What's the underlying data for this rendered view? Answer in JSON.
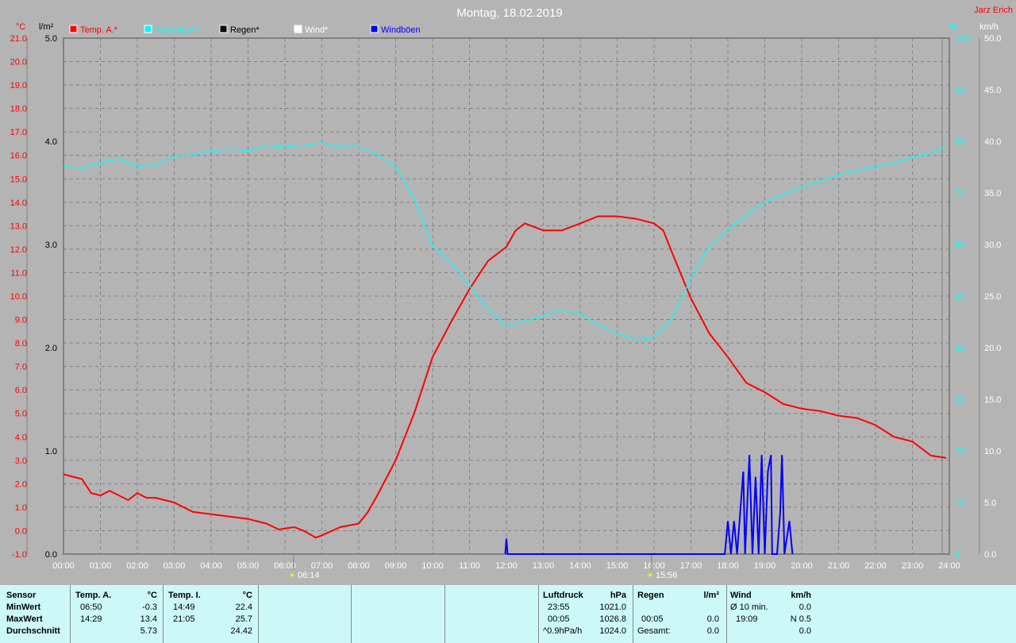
{
  "title": "Montag, 18.02.2019",
  "author": "Jarz Erich",
  "colors": {
    "temp": "#ff0000",
    "humidity": "#00ffff",
    "rain": "#000000",
    "wind": "#ffffff",
    "gust": "#0000ff",
    "background": "#b4b4b4",
    "table": "#ccf8f8"
  },
  "chart_data": {
    "type": "line",
    "title": "Montag, 18.02.2019",
    "legend_position": "top",
    "grid": true,
    "x_ticks": [
      "00:00",
      "01:00",
      "02:00",
      "03:00",
      "04:00",
      "05:00",
      "06:00",
      "07:00",
      "08:00",
      "09:00",
      "10:00",
      "11:00",
      "12:00",
      "13:00",
      "14:00",
      "15:00",
      "16:00",
      "17:00",
      "18:00",
      "19:00",
      "20:00",
      "21:00",
      "22:00",
      "23:00",
      "24:00"
    ],
    "xlim": [
      "00:00",
      "24:00"
    ],
    "axes": {
      "temp": {
        "unit": "°C",
        "ylim": [
          -1.0,
          21.0
        ],
        "ticks": [
          "21.0",
          "20.0",
          "19.0",
          "18.0",
          "17.0",
          "16.0",
          "15.0",
          "14.0",
          "13.0",
          "12.0",
          "11.0",
          "10.0",
          "9.0",
          "8.0",
          "7.0",
          "6.0",
          "5.0",
          "4.0",
          "3.0",
          "2.0",
          "1.0",
          "0.0",
          "-1.0"
        ]
      },
      "rain": {
        "unit": "l/m²",
        "ylim": [
          0,
          5
        ],
        "ticks": [
          "5.0",
          "4.0",
          "3.0",
          "2.0",
          "1.0",
          "0.0"
        ]
      },
      "humidity": {
        "unit": "%",
        "ylim": [
          0,
          100
        ],
        "ticks": [
          "100",
          "90",
          "80",
          "70",
          "60",
          "50",
          "40",
          "30",
          "20",
          "10",
          "0"
        ]
      },
      "wind": {
        "unit": "km/h",
        "ylim": [
          0,
          50
        ],
        "ticks": [
          "50.0",
          "45.0",
          "40.0",
          "35.0",
          "30.0",
          "25.0",
          "20.0",
          "15.0",
          "10.0",
          "5.0",
          "0.0"
        ]
      }
    },
    "series": [
      {
        "name": "Temp. A.*",
        "axis": "temp",
        "points": [
          [
            "00:00",
            2.4
          ],
          [
            "00:30",
            2.2
          ],
          [
            "00:45",
            1.6
          ],
          [
            "01:00",
            1.5
          ],
          [
            "01:15",
            1.7
          ],
          [
            "01:30",
            1.5
          ],
          [
            "01:45",
            1.3
          ],
          [
            "02:00",
            1.6
          ],
          [
            "02:15",
            1.4
          ],
          [
            "02:30",
            1.4
          ],
          [
            "03:00",
            1.2
          ],
          [
            "03:30",
            0.8
          ],
          [
            "04:00",
            0.7
          ],
          [
            "04:30",
            0.6
          ],
          [
            "05:00",
            0.5
          ],
          [
            "05:30",
            0.3
          ],
          [
            "05:50",
            0.05
          ],
          [
            "06:15",
            0.15
          ],
          [
            "06:30",
            0.0
          ],
          [
            "06:50",
            -0.3
          ],
          [
            "07:00",
            -0.2
          ],
          [
            "07:30",
            0.15
          ],
          [
            "08:00",
            0.3
          ],
          [
            "08:15",
            0.8
          ],
          [
            "08:30",
            1.5
          ],
          [
            "09:00",
            3.0
          ],
          [
            "09:30",
            5.0
          ],
          [
            "10:00",
            7.4
          ],
          [
            "10:30",
            8.9
          ],
          [
            "11:00",
            10.3
          ],
          [
            "11:30",
            11.5
          ],
          [
            "12:00",
            12.1
          ],
          [
            "12:15",
            12.8
          ],
          [
            "12:30",
            13.1
          ],
          [
            "13:00",
            12.8
          ],
          [
            "13:30",
            12.8
          ],
          [
            "14:00",
            13.1
          ],
          [
            "14:29",
            13.4
          ],
          [
            "15:00",
            13.4
          ],
          [
            "15:30",
            13.3
          ],
          [
            "16:00",
            13.1
          ],
          [
            "16:15",
            12.8
          ],
          [
            "16:30",
            11.8
          ],
          [
            "17:00",
            9.9
          ],
          [
            "17:30",
            8.4
          ],
          [
            "18:00",
            7.4
          ],
          [
            "18:30",
            6.3
          ],
          [
            "19:00",
            5.9
          ],
          [
            "19:30",
            5.4
          ],
          [
            "20:00",
            5.2
          ],
          [
            "20:30",
            5.1
          ],
          [
            "21:00",
            4.9
          ],
          [
            "21:30",
            4.8
          ],
          [
            "22:00",
            4.5
          ],
          [
            "22:30",
            4.0
          ],
          [
            "23:00",
            3.8
          ],
          [
            "23:30",
            3.2
          ],
          [
            "23:55",
            3.1
          ]
        ]
      },
      {
        "name": "Feuchte A.*",
        "axis": "humidity",
        "points": [
          [
            "00:00",
            75.1
          ],
          [
            "00:30",
            74.8
          ],
          [
            "01:00",
            75.8
          ],
          [
            "01:30",
            76.6
          ],
          [
            "02:00",
            75.1
          ],
          [
            "02:30",
            75.5
          ],
          [
            "03:00",
            77.1
          ],
          [
            "03:30",
            77.4
          ],
          [
            "04:00",
            78.2
          ],
          [
            "04:30",
            78.5
          ],
          [
            "05:00",
            78.2
          ],
          [
            "05:30",
            79.2
          ],
          [
            "06:00",
            78.9
          ],
          [
            "06:30",
            79.2
          ],
          [
            "07:00",
            79.7
          ],
          [
            "07:30",
            78.9
          ],
          [
            "08:00",
            78.9
          ],
          [
            "08:30",
            77.4
          ],
          [
            "09:00",
            75.1
          ],
          [
            "09:30",
            68.9
          ],
          [
            "10:00",
            59.7
          ],
          [
            "10:30",
            56.6
          ],
          [
            "11:00",
            52.0
          ],
          [
            "11:30",
            47.4
          ],
          [
            "12:00",
            44.3
          ],
          [
            "12:30",
            45.1
          ],
          [
            "13:00",
            46.2
          ],
          [
            "13:30",
            47.4
          ],
          [
            "14:00",
            46.6
          ],
          [
            "14:30",
            44.3
          ],
          [
            "15:00",
            42.8
          ],
          [
            "15:30",
            41.5
          ],
          [
            "16:00",
            42.0
          ],
          [
            "16:30",
            45.8
          ],
          [
            "17:00",
            53.5
          ],
          [
            "17:30",
            59.7
          ],
          [
            "18:00",
            62.8
          ],
          [
            "18:30",
            65.8
          ],
          [
            "19:00",
            68.2
          ],
          [
            "19:30",
            69.7
          ],
          [
            "20:00",
            71.2
          ],
          [
            "20:30",
            72.3
          ],
          [
            "21:00",
            73.5
          ],
          [
            "21:30",
            74.3
          ],
          [
            "22:00",
            75.1
          ],
          [
            "22:30",
            75.8
          ],
          [
            "23:00",
            76.9
          ],
          [
            "23:30",
            77.7
          ],
          [
            "23:55",
            78.9
          ]
        ]
      },
      {
        "name": "Regen*",
        "axis": "rain",
        "points": []
      },
      {
        "name": "Wind*",
        "axis": "wind",
        "points": []
      },
      {
        "name": "Windböen",
        "axis": "wind",
        "points": [
          [
            "11:58",
            0
          ],
          [
            "12:00",
            1.5
          ],
          [
            "12:02",
            0
          ],
          [
            "17:55",
            0
          ],
          [
            "18:00",
            3.2
          ],
          [
            "18:05",
            0
          ],
          [
            "18:10",
            3.2
          ],
          [
            "18:15",
            0
          ],
          [
            "18:25",
            8.0
          ],
          [
            "18:28",
            0
          ],
          [
            "18:35",
            9.6
          ],
          [
            "18:40",
            0
          ],
          [
            "18:45",
            7.5
          ],
          [
            "18:50",
            0
          ],
          [
            "18:55",
            9.6
          ],
          [
            "19:00",
            0
          ],
          [
            "19:05",
            8.0
          ],
          [
            "19:10",
            9.6
          ],
          [
            "19:12",
            0
          ],
          [
            "19:20",
            0
          ],
          [
            "19:25",
            4.0
          ],
          [
            "19:28",
            9.6
          ],
          [
            "19:32",
            0
          ],
          [
            "19:40",
            3.2
          ],
          [
            "19:45",
            0
          ]
        ]
      }
    ],
    "annotations": [
      {
        "label": "06:14",
        "icon": "sunrise-icon",
        "x": "06:14"
      },
      {
        "label": "15:56",
        "icon": "sunset-icon",
        "x": "15:56"
      }
    ]
  },
  "table": {
    "row_labels": [
      "Sensor",
      "MinWert",
      "MaxWert",
      "Durchschnitt"
    ],
    "temp_a": {
      "header": "Temp. A.",
      "unit": "°C",
      "min_time": "06:50",
      "min": "-0.3",
      "max_time": "14:29",
      "max": "13.4",
      "avg": "5.73"
    },
    "temp_i": {
      "header": "Temp. I.",
      "unit": "°C",
      "min_time": "14:49",
      "min": "22.4",
      "max_time": "21:05",
      "max": "25.7",
      "avg": "24.42"
    },
    "pressure": {
      "header": "Luftdruck",
      "unit": "hPa",
      "min_time": "23:55",
      "min": "1021.0",
      "max_time": "00:05",
      "max": "1026.8",
      "trend": "^0.9hPa/h",
      "avg": "1024.0"
    },
    "rain": {
      "header": "Regen",
      "unit": "l/m²",
      "max_time": "00:05",
      "max": "0.0",
      "total_label": "Gesamt:",
      "total": "0.0"
    },
    "wind": {
      "header": "Wind",
      "unit": "km/h",
      "avg_label": "Ø 10 min.",
      "avg10": "0.0",
      "max_time": "19:09",
      "max": "N 0.5",
      "avg": "0.0"
    }
  }
}
